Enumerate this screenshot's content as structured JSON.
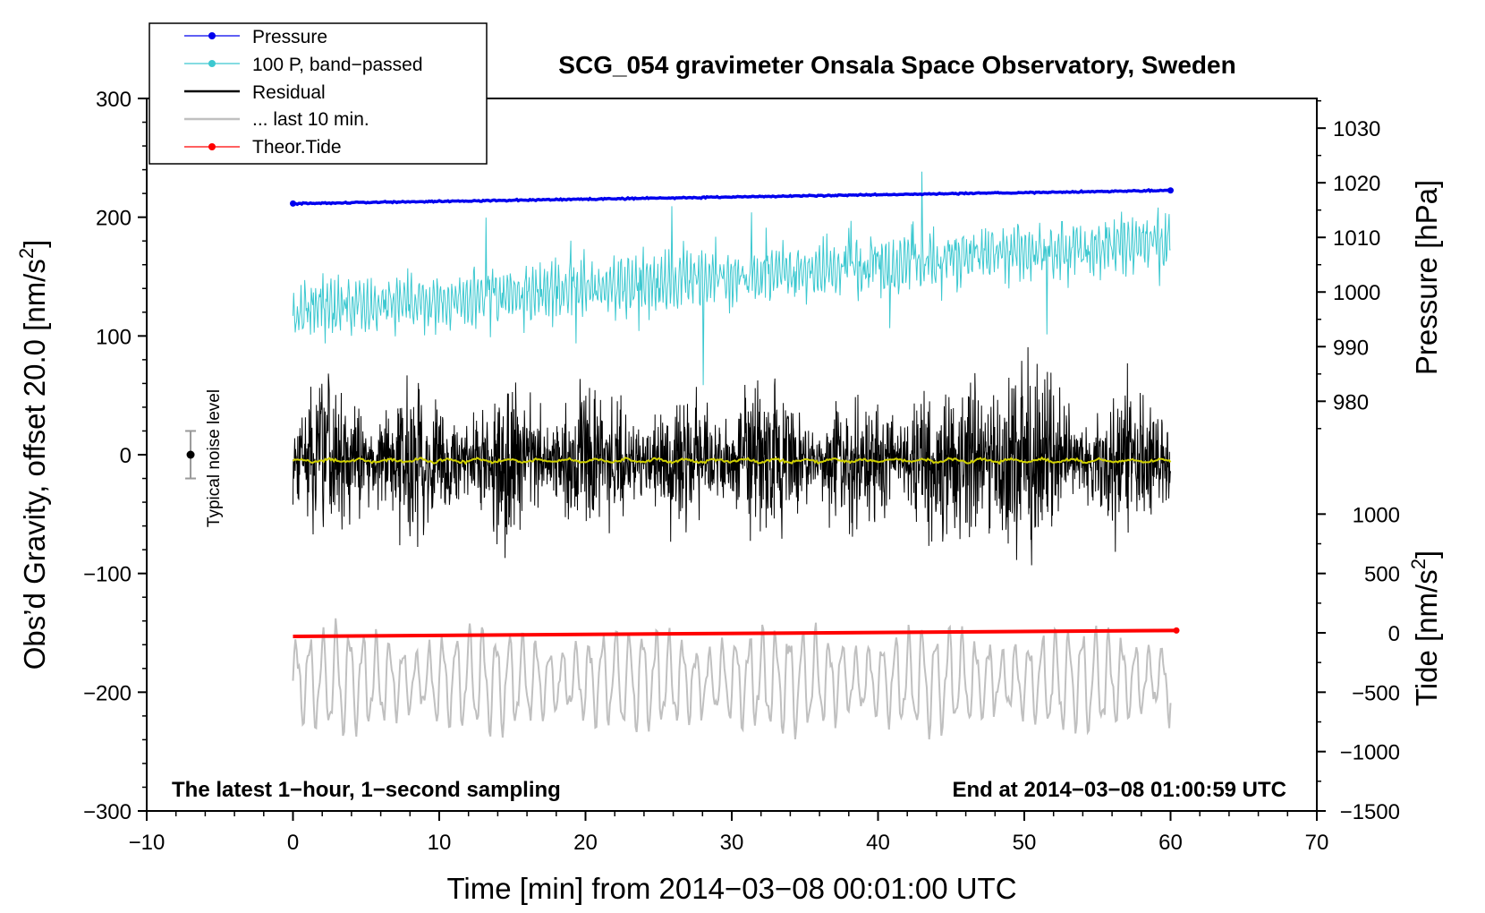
{
  "chart_data": {
    "type": "line",
    "title": "SCG_054 gravimeter Onsala Space Observatory, Sweden",
    "xlabel": "Time [min] from 2014−03−08 00:01:00 UTC",
    "ylabel_left_main": "Obs’d Gravity, offset 20.0 [nm/s",
    "ylabel_left_sup": "2",
    "ylabel_left_end": "]",
    "ylabel_right_pressure": "Pressure [hPa]",
    "ylabel_right_tide_main": "Tide [nm/s",
    "ylabel_right_tide_sup": "2",
    "ylabel_right_tide_end": "]",
    "xlim": [
      -10,
      70
    ],
    "ylim_left": [
      -300,
      300
    ],
    "x_ticks": [
      -10,
      0,
      10,
      20,
      30,
      40,
      50,
      60,
      70
    ],
    "x_tick_labels": [
      "−10",
      "0",
      "10",
      "20",
      "30",
      "40",
      "50",
      "60",
      "70"
    ],
    "y_left_ticks": [
      300,
      200,
      100,
      0,
      -100,
      -200,
      -300
    ],
    "y_left_tick_labels": [
      "300",
      "200",
      "100",
      "0",
      "−100",
      "−200",
      "−300"
    ],
    "pressure_axis": {
      "ticks": [
        1030,
        1020,
        1010,
        1000,
        990,
        980
      ],
      "tick_labels": [
        "1030",
        "1020",
        "1010",
        "1000",
        "990",
        "980"
      ],
      "ref_value_low": 980,
      "ref_gravity_low": 45,
      "ref_value_high": 1030,
      "ref_gravity_high": 275
    },
    "tide_axis": {
      "ticks": [
        1000,
        500,
        0,
        -500,
        -1000,
        -1500
      ],
      "tick_labels": [
        "1000",
        "500",
        "0",
        "−500",
        "−1000",
        "−1500"
      ],
      "ref_value_low": -1500,
      "ref_gravity_low": -300,
      "ref_value_high": 1000,
      "ref_gravity_high": -50
    },
    "legend": [
      {
        "label": "Pressure",
        "color": "#0000ee",
        "marker": true
      },
      {
        "label": "100 P, band−passed",
        "color": "#3cc8d0",
        "marker": true
      },
      {
        "label": "Residual",
        "color": "#000000",
        "marker": false
      },
      {
        "label": "... last 10 min.",
        "color": "#c0c0c0",
        "marker": false
      },
      {
        "label": "Theor.Tide",
        "color": "#ff0000",
        "marker": true
      }
    ],
    "series": [
      {
        "name": "Pressure",
        "color": "#0000ee",
        "unit": "hPa",
        "x_start": 0,
        "x_end": 60,
        "value_start": 1016.2,
        "value_end": 1018.6
      },
      {
        "name": "100 P, band−passed",
        "color": "#3cc8d0",
        "unit": "nm/s2",
        "x_start": 0,
        "x_end": 60,
        "mean_start": 120,
        "mean_end": 180,
        "amplitude": 22,
        "min": 55,
        "max": 248
      },
      {
        "name": "Residual",
        "color": "#000000",
        "unit": "nm/s2",
        "x_start": 0,
        "x_end": 60,
        "mean": -5,
        "amplitude": 45,
        "min": -112,
        "max": 97
      },
      {
        "name": "Residual smoothed",
        "color": "#d0d000",
        "unit": "nm/s2",
        "x_start": 0,
        "x_end": 60,
        "mean": -5
      },
      {
        "name": "... last 10 min.",
        "color": "#c0c0c0",
        "unit": "nm/s2",
        "x_start": 0,
        "x_end": 60,
        "mean": -190,
        "amplitude": 45,
        "min": -268,
        "max": -128
      },
      {
        "name": "Theor.Tide",
        "color": "#ff0000",
        "unit": "nm/s2",
        "x_start": 0,
        "x_end": 60.4,
        "value_start": -30,
        "value_end": 20
      }
    ],
    "noise_indicator": {
      "label": "Typical noise level",
      "x": -7,
      "center": 0,
      "low": -20,
      "high": 20
    },
    "footer_left": "The latest 1−hour, 1−second sampling",
    "footer_right": "End at 2014−03−08 01:00:59 UTC",
    "colors": {
      "axis": "#000000",
      "background": "#ffffff",
      "legend_border": "#000000"
    }
  }
}
